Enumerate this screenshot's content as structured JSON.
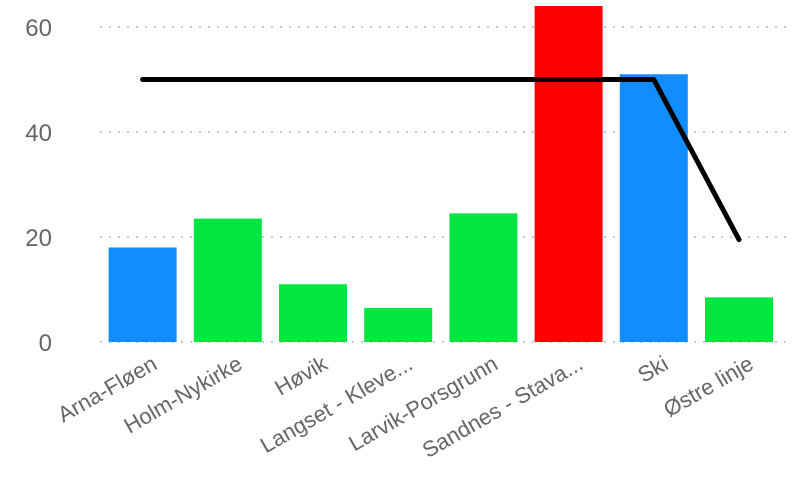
{
  "chart_data": {
    "type": "bar",
    "categories": [
      "Arna-Fløen",
      "Holm-Nykirke",
      "Høvik",
      "Langset - Kleve...",
      "Larvik-Porsgrunn",
      "Sandnes - Stava...",
      "Ski",
      "Østre linje"
    ],
    "series": [
      {
        "values": [
          18,
          23.5,
          11,
          6.5,
          24.5,
          64,
          51,
          8.5
        ],
        "colors": [
          "#118dff",
          "#00e540",
          "#00e540",
          "#00e540",
          "#00e540",
          "#ff0000",
          "#118dff",
          "#00e540"
        ]
      },
      {
        "type": "line",
        "color": "#000000",
        "values": [
          null,
          null,
          null,
          null,
          null,
          null,
          null,
          null
        ],
        "points": [
          {
            "x": "Arna-Fløen",
            "y": 50
          },
          {
            "x": "Ski",
            "y": 50
          },
          {
            "x": "Østre linje",
            "y": 19.5
          }
        ]
      }
    ],
    "yticks": [
      0,
      20,
      40,
      60
    ],
    "ylim": [
      0,
      64
    ],
    "grid": true,
    "gridStyle": "dotted",
    "title": "",
    "xlabel": "",
    "ylabel": ""
  }
}
